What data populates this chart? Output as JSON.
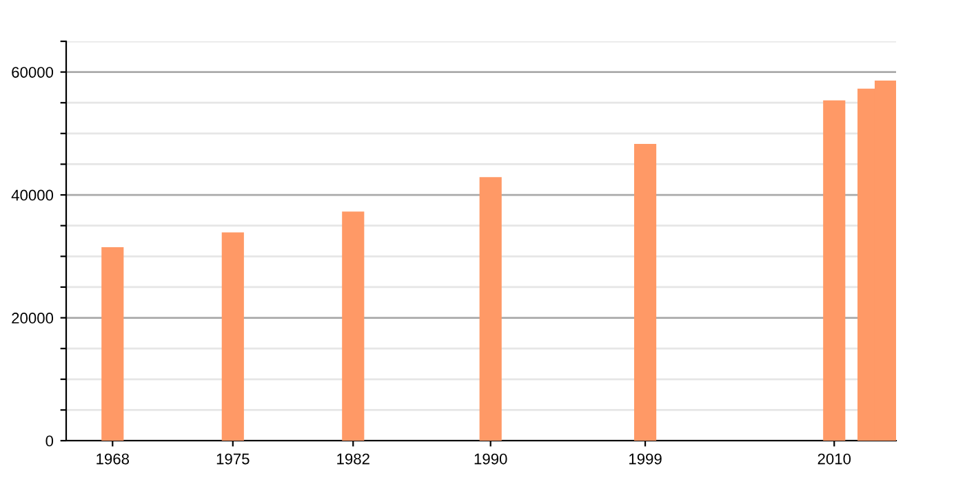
{
  "chart_data": {
    "type": "bar",
    "x": [
      1968,
      1975,
      1982,
      1990,
      1999,
      2010,
      2012,
      2013
    ],
    "values": [
      31500,
      33900,
      37300,
      42900,
      48300,
      55400,
      57300,
      58600
    ],
    "color": "#ff9966",
    "xlim": [
      1965.3,
      2013.6
    ],
    "xticks": [
      1968,
      1975,
      1982,
      1990,
      1999,
      2010
    ],
    "ylim": [
      0,
      65000
    ],
    "yticks": [
      0,
      {
        "value": 5000,
        "label": null
      },
      {
        "value": 10000,
        "label": null
      },
      {
        "value": 15000,
        "label": null
      },
      20000,
      {
        "value": 25000,
        "label": null
      },
      {
        "value": 30000,
        "label": null
      },
      {
        "value": 35000,
        "label": null
      },
      40000,
      {
        "value": 45000,
        "label": null
      },
      {
        "value": 50000,
        "label": null
      },
      {
        "value": 55000,
        "label": null
      },
      60000,
      {
        "value": 65000,
        "label": null
      }
    ],
    "grid": "y"
  }
}
